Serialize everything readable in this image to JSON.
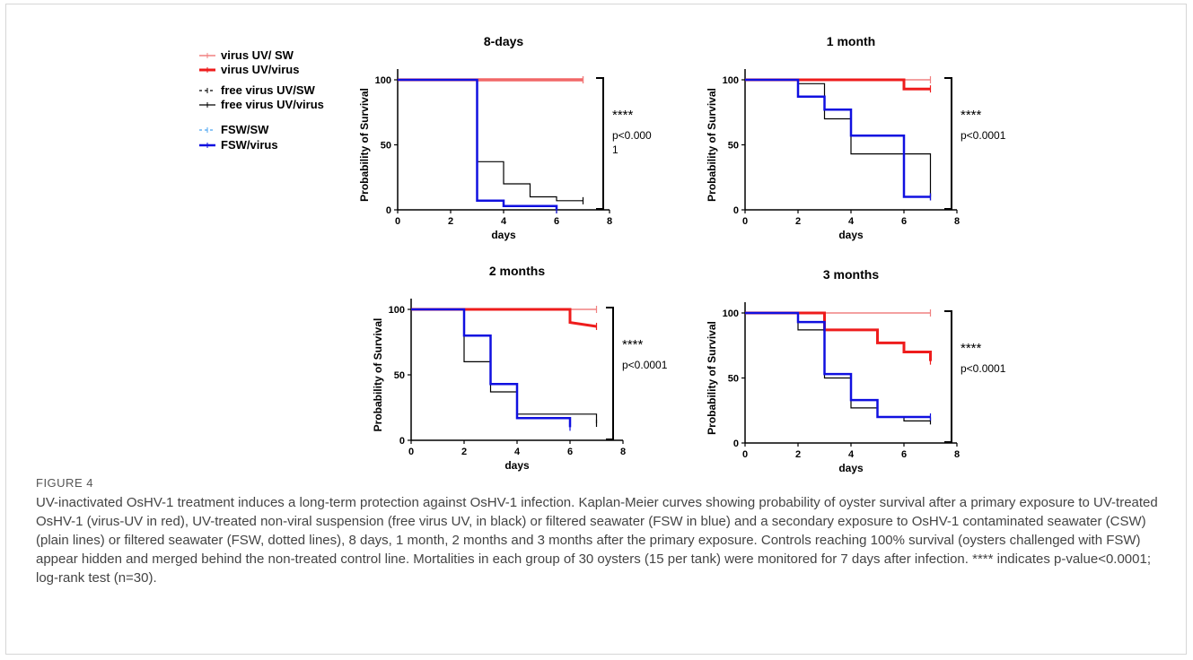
{
  "legend": {
    "items": [
      {
        "label": "virus UV/ SW",
        "color": "#f08080",
        "dash": "solid",
        "width": 1.5
      },
      {
        "label": "virus UV/virus",
        "color": "#ee1c1c",
        "dash": "solid",
        "width": 3
      },
      {
        "label": "free virus UV/SW",
        "color": "#000000",
        "dash": "dashed",
        "width": 1.2
      },
      {
        "label": "free virus UV/virus",
        "color": "#000000",
        "dash": "solid",
        "width": 1.2
      },
      {
        "label": "FSW/SW",
        "color": "#4aa3f0",
        "dash": "dashed",
        "width": 1.2
      },
      {
        "label": "FSW/virus",
        "color": "#1010e0",
        "dash": "solid",
        "width": 2.5
      }
    ]
  },
  "chart_data": [
    {
      "type": "line",
      "title": "8-days",
      "xlabel": "days",
      "ylabel": "Probability of Survival",
      "xlim": [
        0,
        8
      ],
      "ylim": [
        0,
        100
      ],
      "xticks": [
        0,
        2,
        4,
        6,
        8
      ],
      "yticks": [
        0,
        50,
        100
      ],
      "significance": "****",
      "p_text_lines": [
        "p<0.000",
        "1"
      ],
      "series": [
        {
          "legend_index": 1,
          "x": [
            0,
            7
          ],
          "y": [
            100,
            100
          ]
        },
        {
          "legend_index": 0,
          "x": [
            0,
            7
          ],
          "y": [
            100,
            100
          ]
        },
        {
          "legend_index": 3,
          "x": [
            0,
            3,
            3,
            4,
            4,
            5,
            5,
            6,
            6,
            7
          ],
          "y": [
            100,
            100,
            37,
            37,
            20,
            20,
            10,
            10,
            7,
            7
          ]
        },
        {
          "legend_index": 5,
          "x": [
            0,
            3,
            3,
            4,
            4,
            6,
            6
          ],
          "y": [
            100,
            100,
            7,
            7,
            3,
            3,
            0
          ]
        }
      ]
    },
    {
      "type": "line",
      "title": "1 month",
      "xlabel": "days",
      "ylabel": "Probability of Survival",
      "xlim": [
        0,
        8
      ],
      "ylim": [
        0,
        100
      ],
      "xticks": [
        0,
        2,
        4,
        6,
        8
      ],
      "yticks": [
        0,
        50,
        100
      ],
      "significance": "****",
      "p_text_lines": [
        "p<0.0001"
      ],
      "series": [
        {
          "legend_index": 0,
          "x": [
            0,
            7
          ],
          "y": [
            100,
            100
          ]
        },
        {
          "legend_index": 1,
          "x": [
            0,
            6,
            6,
            7
          ],
          "y": [
            100,
            100,
            93,
            93
          ]
        },
        {
          "legend_index": 3,
          "x": [
            0,
            2,
            2,
            3,
            3,
            4,
            4,
            6,
            6,
            7,
            7
          ],
          "y": [
            100,
            100,
            97,
            97,
            70,
            70,
            43,
            43,
            43,
            43,
            10
          ]
        },
        {
          "legend_index": 5,
          "x": [
            0,
            2,
            2,
            3,
            3,
            4,
            4,
            6,
            6,
            7
          ],
          "y": [
            100,
            100,
            87,
            87,
            77,
            77,
            57,
            57,
            10,
            10
          ]
        }
      ]
    },
    {
      "type": "line",
      "title": "2 months",
      "xlabel": "days",
      "ylabel": "Probability of Survival",
      "xlim": [
        0,
        8
      ],
      "ylim": [
        0,
        100
      ],
      "xticks": [
        0,
        2,
        4,
        6,
        8
      ],
      "yticks": [
        0,
        50,
        100
      ],
      "significance": "****",
      "p_text_lines": [
        "p<0.0001"
      ],
      "series": [
        {
          "legend_index": 0,
          "x": [
            0,
            7
          ],
          "y": [
            100,
            100
          ]
        },
        {
          "legend_index": 1,
          "x": [
            0,
            6,
            6,
            7
          ],
          "y": [
            100,
            100,
            90,
            87
          ]
        },
        {
          "legend_index": 3,
          "x": [
            0,
            2,
            2,
            3,
            3,
            4,
            4,
            7,
            7
          ],
          "y": [
            100,
            100,
            60,
            60,
            37,
            37,
            20,
            20,
            13
          ]
        },
        {
          "legend_index": 5,
          "x": [
            0,
            2,
            2,
            3,
            3,
            4,
            4,
            6,
            6
          ],
          "y": [
            100,
            100,
            80,
            80,
            43,
            43,
            17,
            17,
            10
          ]
        }
      ]
    },
    {
      "type": "line",
      "title": "3 months",
      "xlabel": "days",
      "ylabel": "Probability of Survival",
      "xlim": [
        0,
        8
      ],
      "ylim": [
        0,
        100
      ],
      "xticks": [
        0,
        2,
        4,
        6,
        8
      ],
      "yticks": [
        0,
        50,
        100
      ],
      "significance": "****",
      "p_text_lines": [
        "p<0.0001"
      ],
      "series": [
        {
          "legend_index": 0,
          "x": [
            0,
            7
          ],
          "y": [
            100,
            100
          ]
        },
        {
          "legend_index": 1,
          "x": [
            0,
            3,
            3,
            5,
            5,
            6,
            6,
            7,
            7
          ],
          "y": [
            100,
            100,
            87,
            87,
            77,
            77,
            70,
            70,
            63
          ]
        },
        {
          "legend_index": 3,
          "x": [
            0,
            2,
            2,
            3,
            3,
            4,
            4,
            5,
            5,
            6,
            6,
            7
          ],
          "y": [
            100,
            100,
            87,
            87,
            50,
            50,
            27,
            27,
            20,
            20,
            17,
            17
          ]
        },
        {
          "legend_index": 5,
          "x": [
            0,
            2,
            2,
            3,
            3,
            4,
            4,
            5,
            5,
            7
          ],
          "y": [
            100,
            100,
            93,
            93,
            53,
            53,
            33,
            33,
            20,
            20
          ]
        }
      ]
    }
  ],
  "caption": {
    "label": "FIGURE 4",
    "text": "UV-inactivated OsHV-1 treatment induces a long-term protection against OsHV-1 infection. Kaplan-Meier curves showing probability of oyster survival after a primary exposure to UV-treated OsHV-1 (virus-UV in red), UV-treated non-viral suspension (free virus UV, in black) or filtered seawater (FSW in blue) and a secondary exposure to OsHV-1 contaminated seawater (CSW) (plain lines) or filtered seawater (FSW, dotted lines), 8 days, 1 month, 2 months and 3 months after the primary exposure. Controls reaching 100% survival (oysters challenged with FSW) appear hidden and merged behind the non-treated control line. Mortalities in each group of 30 oysters (15 per tank) were monitored for 7 days after infection. **** indicates p-value<0.0001; log-rank test (n=30)."
  }
}
